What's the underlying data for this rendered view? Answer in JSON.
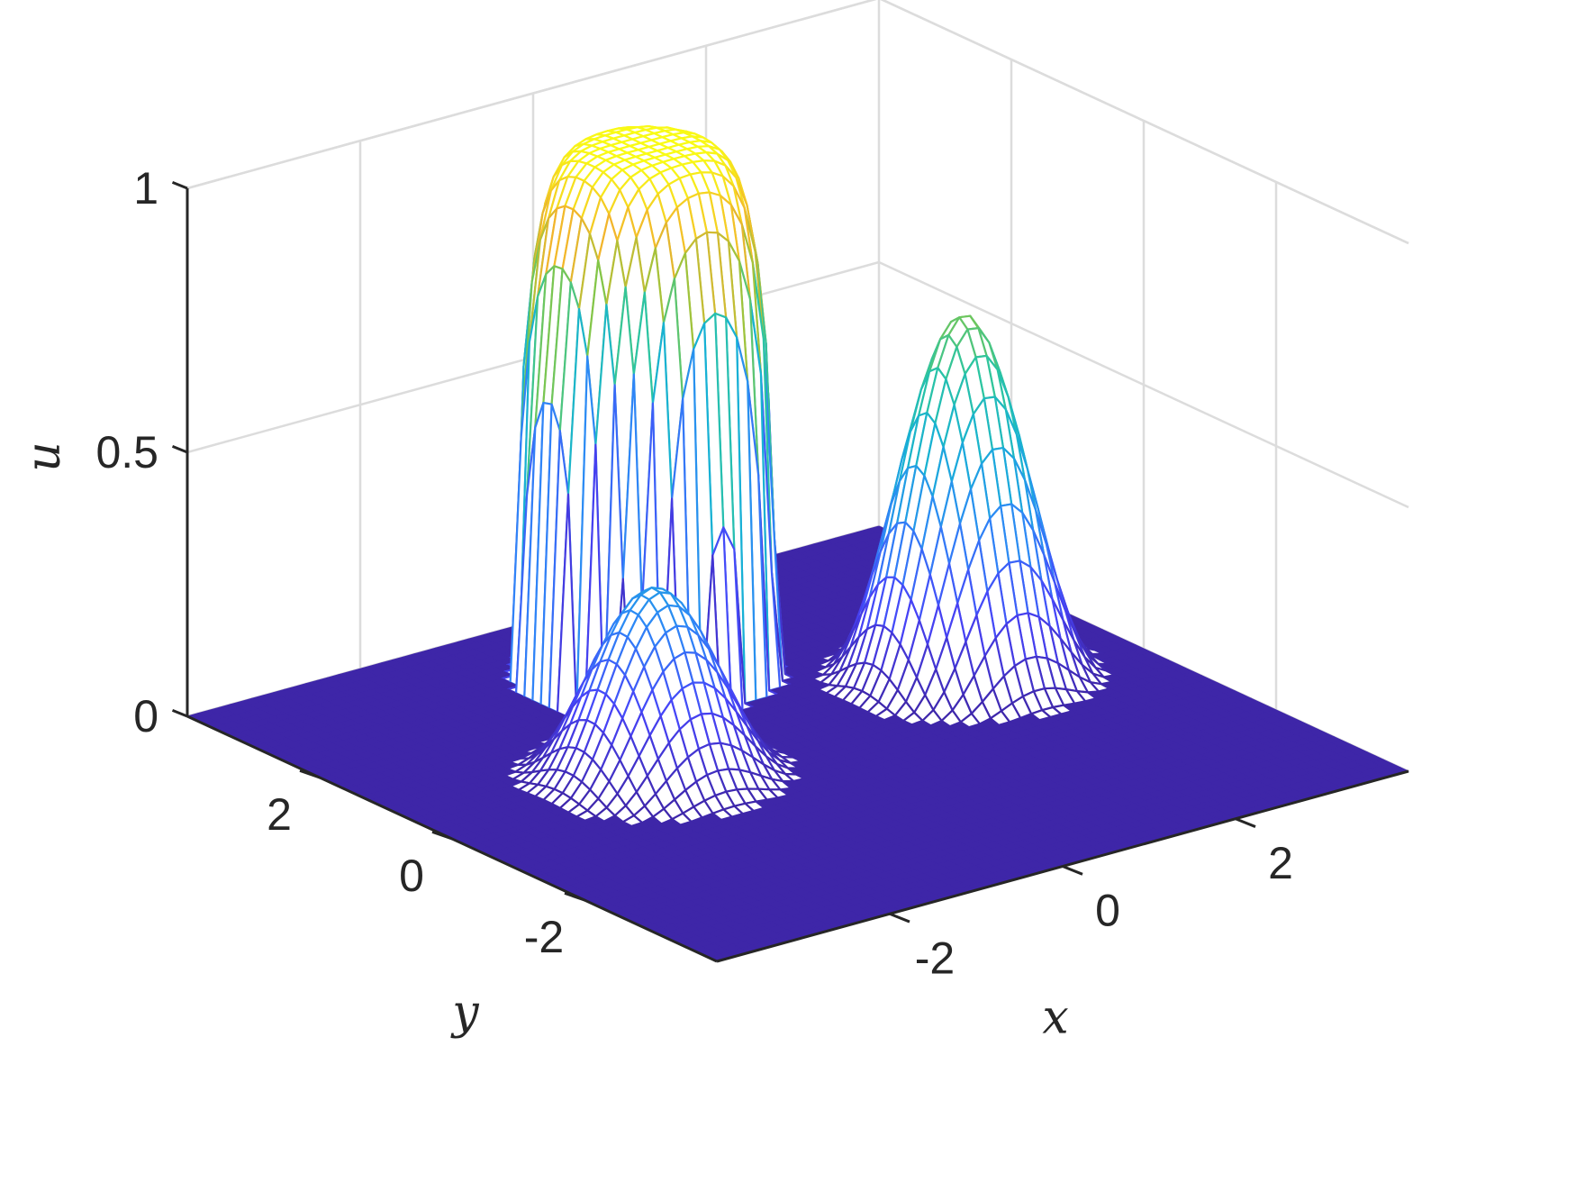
{
  "chart_data": {
    "type": "surface-mesh",
    "xlabel": "x",
    "ylabel": "y",
    "zlabel": "u",
    "xlim": [
      -4,
      4
    ],
    "ylim": [
      -4,
      4
    ],
    "zlim": [
      0,
      1
    ],
    "xticks": [
      -2,
      0,
      2
    ],
    "yticks": [
      -2,
      0,
      2
    ],
    "zticks": [
      0,
      0.5,
      1
    ],
    "xtick_labels": [
      "-2",
      "0",
      "2"
    ],
    "ytick_labels": [
      "-2",
      "0",
      "2"
    ],
    "ztick_labels": [
      "0",
      "0.5",
      "1"
    ],
    "grid": true,
    "colormap": "parula",
    "colormap_stops": [
      "#3e26a8",
      "#4743f8",
      "#2e87f7",
      "#17b1d5",
      "#2cc5a0",
      "#8cc63f",
      "#f2b52c",
      "#f9fb15"
    ],
    "mesh_resolution": 64,
    "features": [
      {
        "name": "plateau",
        "center": [
          0,
          2.3
        ],
        "radius": 1.2,
        "height": 1.0
      },
      {
        "name": "peak-near",
        "center": [
          -1.5,
          0.2
        ],
        "radius": 1.35,
        "height": 0.35
      },
      {
        "name": "peak-right",
        "center": [
          2.3,
          0.5
        ],
        "radius": 1.35,
        "height": 0.68
      }
    ]
  }
}
